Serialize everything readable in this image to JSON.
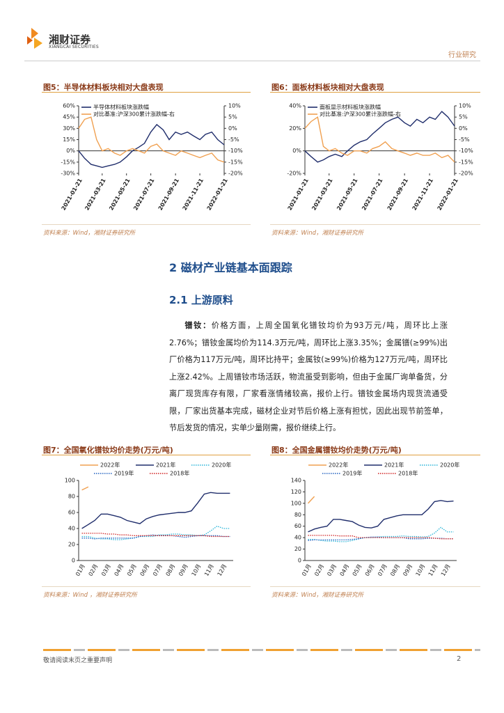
{
  "header": {
    "logo_cn": "湘财证券",
    "logo_en": "XIANGCAI SECURITIES",
    "category": "行业研究"
  },
  "figures": [
    {
      "title": "图5：半导体材料板块相对大盘表现",
      "source": "资料来源：Wind，湘财证券研究所"
    },
    {
      "title": "图6：面板材料板块相对大盘表现",
      "source": "资料来源：Wind，湘财证券研究所"
    },
    {
      "title": "图7：全国氧化镨钕均价走势(万元/吨)",
      "source": "资料来源：Wind ，湘财证券研究所"
    },
    {
      "title": "图8：全国金属镨钕均价走势(万元/吨)",
      "source": "资料来源：Wind，湘财证券研究所"
    }
  ],
  "section": {
    "heading": "2 磁材产业链基本面跟踪",
    "subheading": "2.1 上游原料",
    "paragraph_lead": "镨钕：",
    "paragraph": "价格方面，上周全国氧化镨钕均价为93万元/吨，周环比上涨2.76%；镨钕金属均价为114.3万元/吨，周环比上涨3.35%；金属镨(≥99%)出厂价格为117万元/吨，周环比持平；金属钕(≥99%)价格为127万元/吨，周环比上涨2.42%。上周镨钕市场活跃，物流虽受到影响，但由于金属厂询单备货，分离厂现货库存有限，厂家看涨情绪较高，报价上行。镨钕金属场内现货流通受限，厂家出货基本完成，磁材企业对节后价格上涨有担忧，因此出现节前签单，节后发货的情况，实单少量刚需，报价继续上行。"
  },
  "footer": {
    "note": "敬请阅读末页之重要声明",
    "page": "2"
  },
  "chart_data": [
    {
      "type": "line",
      "x": [
        "2021-01-21",
        "2021-02-05",
        "2021-02-21",
        "2021-03-07",
        "2021-03-21",
        "2021-04-05",
        "2021-04-21",
        "2021-05-05",
        "2021-05-21",
        "2021-06-05",
        "2021-06-21",
        "2021-07-05",
        "2021-07-21",
        "2021-08-05",
        "2021-08-21",
        "2021-09-05",
        "2021-09-21",
        "2021-10-05",
        "2021-10-21",
        "2021-11-05",
        "2021-11-21",
        "2021-12-05",
        "2021-12-21",
        "2022-01-05",
        "2022-01-21"
      ],
      "xlim": [
        "2021-01-21",
        "2022-01-21"
      ],
      "xticks": [
        "2021-01-21",
        "2021-03-21",
        "2021-05-21",
        "2021-07-21",
        "2021-09-21",
        "2021-11-21",
        "2022-01-21"
      ],
      "ylim": [
        -30,
        60
      ],
      "yticks": [
        {
          "value": 60,
          "label": "60%"
        },
        {
          "value": 45,
          "label": "45%"
        },
        {
          "value": 30,
          "label": "30%"
        },
        {
          "value": 15,
          "label": "15%"
        },
        {
          "value": 0,
          "label": "0%"
        },
        {
          "value": -15,
          "label": "-15%"
        },
        {
          "value": -30,
          "label": "-30%"
        }
      ],
      "y2lim": [
        -20,
        10
      ],
      "y2ticks": [
        {
          "value": 10,
          "label": "10%"
        },
        {
          "value": 5,
          "label": "5%"
        },
        {
          "value": 0,
          "label": "0%"
        },
        {
          "value": -5,
          "label": "-5%"
        },
        {
          "value": -10,
          "label": "-10%"
        },
        {
          "value": -15,
          "label": "-15%"
        },
        {
          "value": -20,
          "label": "-20%"
        }
      ],
      "legend": "upper left",
      "series": [
        {
          "name": "半导体材料板块涨跌幅",
          "color": "#1f2d6b",
          "values": [
            0,
            -10,
            -18,
            -20,
            -22,
            -20,
            -18,
            -15,
            -8,
            0,
            5,
            10,
            25,
            35,
            28,
            15,
            25,
            22,
            25,
            20,
            15,
            22,
            25,
            15,
            8
          ]
        },
        {
          "name": "对比基准:沪深300累计涨跌幅-右",
          "color": "#f0a050",
          "axis": "y2",
          "values": [
            0,
            4,
            5,
            -5,
            -10,
            -9,
            -11,
            -12,
            -10,
            -9,
            -10,
            -11,
            -8,
            -7,
            -10,
            -11,
            -12,
            -10,
            -11,
            -12,
            -13,
            -12,
            -11,
            -14,
            -15
          ]
        }
      ]
    },
    {
      "type": "line",
      "x": [
        "2021-01-21",
        "2021-02-05",
        "2021-02-21",
        "2021-03-07",
        "2021-03-21",
        "2021-04-05",
        "2021-04-21",
        "2021-05-05",
        "2021-05-21",
        "2021-06-05",
        "2021-06-21",
        "2021-07-05",
        "2021-07-21",
        "2021-08-05",
        "2021-08-21",
        "2021-09-05",
        "2021-09-21",
        "2021-10-05",
        "2021-10-21",
        "2021-11-05",
        "2021-11-21",
        "2021-12-05",
        "2021-12-21",
        "2022-01-05",
        "2022-01-21"
      ],
      "xlim": [
        "2021-01-21",
        "2022-01-21"
      ],
      "xticks": [
        "2021-01-21",
        "2021-03-21",
        "2021-05-21",
        "2021-07-21",
        "2021-09-21",
        "2021-11-21",
        "2022-01-21"
      ],
      "ylim": [
        -20,
        40
      ],
      "yticks": [
        {
          "value": 40,
          "label": "40%"
        },
        {
          "value": 20,
          "label": "20%"
        },
        {
          "value": 0,
          "label": "0%"
        },
        {
          "value": -20,
          "label": "-20%"
        }
      ],
      "y2lim": [
        -20,
        10
      ],
      "y2ticks": [
        {
          "value": 10,
          "label": "10%"
        },
        {
          "value": 5,
          "label": "5%"
        },
        {
          "value": 0,
          "label": "0%"
        },
        {
          "value": -5,
          "label": "-5%"
        },
        {
          "value": -10,
          "label": "-10%"
        },
        {
          "value": -15,
          "label": "-15%"
        },
        {
          "value": -20,
          "label": "-20%"
        }
      ],
      "legend": "upper left",
      "series": [
        {
          "name": "面板显示材料板块涨跌幅",
          "color": "#1f2d6b",
          "values": [
            0,
            -5,
            -10,
            -8,
            -5,
            -3,
            -5,
            0,
            5,
            8,
            10,
            15,
            20,
            25,
            28,
            30,
            25,
            22,
            28,
            25,
            30,
            28,
            35,
            30,
            22
          ]
        },
        {
          "name": "对比基准:沪深300累计涨跌幅-右",
          "color": "#f0a050",
          "axis": "y2",
          "values": [
            0,
            3,
            5,
            -8,
            -10,
            -9,
            -11,
            -12,
            -10,
            -10,
            -11,
            -9,
            -8,
            -6,
            -9,
            -10,
            -11,
            -12,
            -11,
            -12,
            -12,
            -11,
            -13,
            -12,
            -15
          ]
        }
      ]
    },
    {
      "type": "line",
      "categories": [
        "01月",
        null,
        "02月",
        null,
        "03月",
        null,
        "04月",
        null,
        "05月",
        null,
        "06月",
        null,
        "07月",
        null,
        "08月",
        null,
        "09月",
        null,
        "10月",
        null,
        "11月",
        null,
        "12月",
        null
      ],
      "ylim": [
        0,
        100
      ],
      "yticks": [
        0,
        20,
        40,
        60,
        80,
        100
      ],
      "legend": "top",
      "series": [
        {
          "name": "2022年",
          "color": "#f0a050",
          "values": [
            88,
            92,
            null,
            null,
            null,
            null,
            null,
            null,
            null,
            null,
            null,
            null,
            null,
            null,
            null,
            null,
            null,
            null,
            null,
            null,
            null,
            null,
            null,
            null
          ]
        },
        {
          "name": "2021年",
          "color": "#1f2d6b",
          "values": [
            40,
            45,
            50,
            58,
            58,
            56,
            54,
            50,
            48,
            46,
            52,
            55,
            57,
            58,
            59,
            60,
            60,
            62,
            72,
            83,
            85,
            84,
            84,
            84
          ]
        },
        {
          "name": "2020年",
          "color": "#28b4d8",
          "dashed": true,
          "values": [
            30,
            30,
            28,
            27,
            27,
            26,
            26,
            27,
            28,
            30,
            30,
            30,
            32,
            32,
            33,
            33,
            32,
            32,
            31,
            32,
            37,
            43,
            40,
            40
          ]
        },
        {
          "name": "2019年",
          "color": "#2060c0",
          "dashed": true,
          "values": [
            28,
            28,
            27,
            28,
            28,
            28,
            28,
            28,
            28,
            30,
            31,
            32,
            31,
            31,
            31,
            30,
            29,
            30,
            31,
            31,
            31,
            31,
            30,
            30
          ]
        },
        {
          "name": "2018年",
          "color": "#d02020",
          "dashed": true,
          "values": [
            34,
            34,
            34,
            34,
            33,
            33,
            32,
            32,
            31,
            31,
            31,
            31,
            31,
            31,
            31,
            31,
            31,
            31,
            31,
            31,
            30,
            30,
            30,
            30
          ]
        }
      ]
    },
    {
      "type": "line",
      "categories": [
        "01月",
        null,
        "02月",
        null,
        "03月",
        null,
        "04月",
        null,
        "05月",
        null,
        "06月",
        null,
        "07月",
        null,
        "08月",
        null,
        "09月",
        null,
        "10月",
        null,
        "11月",
        null,
        "12月",
        null
      ],
      "ylim": [
        0,
        140
      ],
      "yticks": [
        0,
        20,
        40,
        60,
        80,
        100,
        120,
        140
      ],
      "legend": "top",
      "series": [
        {
          "name": "2022年",
          "color": "#f0a050",
          "values": [
            100,
            112,
            null,
            null,
            null,
            null,
            null,
            null,
            null,
            null,
            null,
            null,
            null,
            null,
            null,
            null,
            null,
            null,
            null,
            null,
            null,
            null,
            null,
            null
          ]
        },
        {
          "name": "2021年",
          "color": "#1f2d6b",
          "values": [
            50,
            55,
            58,
            60,
            72,
            72,
            70,
            68,
            62,
            58,
            57,
            60,
            72,
            75,
            78,
            80,
            80,
            80,
            80,
            90,
            103,
            105,
            103,
            104
          ]
        },
        {
          "name": "2020年",
          "color": "#28b4d8",
          "dashed": true,
          "values": [
            37,
            37,
            35,
            34,
            34,
            33,
            33,
            35,
            38,
            40,
            40,
            41,
            42,
            42,
            42,
            43,
            42,
            42,
            41,
            42,
            48,
            58,
            50,
            50
          ]
        },
        {
          "name": "2019年",
          "color": "#2060c0",
          "dashed": true,
          "values": [
            35,
            36,
            36,
            36,
            36,
            36,
            36,
            37,
            38,
            40,
            41,
            41,
            40,
            40,
            40,
            40,
            38,
            38,
            38,
            39,
            39,
            39,
            38,
            38
          ]
        },
        {
          "name": "2018年",
          "color": "#d02020",
          "dashed": true,
          "values": [
            44,
            44,
            44,
            44,
            44,
            43,
            43,
            43,
            40,
            40,
            40,
            40,
            40,
            40,
            40,
            40,
            40,
            40,
            40,
            40,
            39,
            38,
            38,
            38
          ]
        }
      ]
    }
  ]
}
